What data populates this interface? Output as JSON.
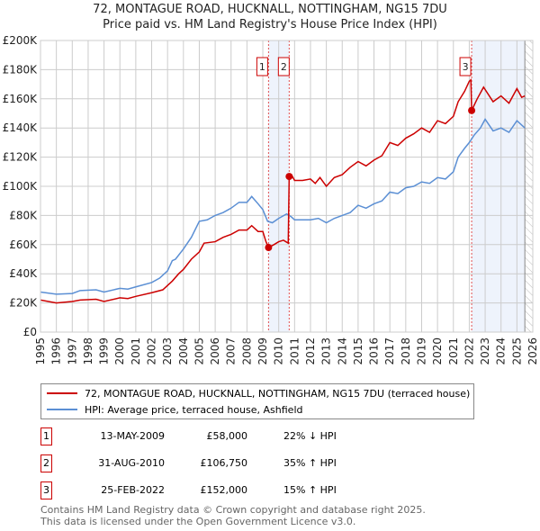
{
  "title": "72, MONTAGUE ROAD, HUCKNALL, NOTTINGHAM, NG15 7DU",
  "subtitle": "Price paid vs. HM Land Registry's House Price Index (HPI)",
  "chart_data": {
    "type": "line",
    "xlim": [
      1995,
      2026
    ],
    "ylim": [
      0,
      200000
    ],
    "xticks": [
      1995,
      1996,
      1997,
      1998,
      1999,
      2000,
      2001,
      2002,
      2003,
      2004,
      2005,
      2006,
      2007,
      2008,
      2009,
      2010,
      2011,
      2012,
      2013,
      2014,
      2015,
      2016,
      2017,
      2018,
      2019,
      2020,
      2021,
      2022,
      2023,
      2024,
      2025,
      2026
    ],
    "yticks": [
      {
        "v": 0,
        "label": "£0"
      },
      {
        "v": 20000,
        "label": "£20K"
      },
      {
        "v": 40000,
        "label": "£40K"
      },
      {
        "v": 60000,
        "label": "£60K"
      },
      {
        "v": 80000,
        "label": "£80K"
      },
      {
        "v": 100000,
        "label": "£100K"
      },
      {
        "v": 120000,
        "label": "£120K"
      },
      {
        "v": 140000,
        "label": "£140K"
      },
      {
        "v": 160000,
        "label": "£160K"
      },
      {
        "v": 180000,
        "label": "£180K"
      },
      {
        "v": 200000,
        "label": "£200K"
      }
    ],
    "series": [
      {
        "name": "72, MONTAGUE ROAD, HUCKNALL, NOTTINGHAM, NG15 7DU (terraced house)",
        "color": "#cc0000",
        "x": [
          1995,
          1996,
          1997,
          1997.5,
          1998.5,
          1999,
          2000,
          2000.5,
          2001,
          2002,
          2002.7,
          2003.3,
          2003.7,
          2004,
          2004.5,
          2005,
          2005.3,
          2006,
          2006.5,
          2007,
          2007.5,
          2008,
          2008.3,
          2008.7,
          2009,
          2009.2,
          2009.36,
          2009.7,
          2010,
          2010.3,
          2010.6,
          2010.66,
          2010.8,
          2011,
          2011.5,
          2012,
          2012.3,
          2012.6,
          2013,
          2013.5,
          2014,
          2014.5,
          2015,
          2015.5,
          2016,
          2016.5,
          2017,
          2017.5,
          2018,
          2018.5,
          2019,
          2019.5,
          2020,
          2020.5,
          2021,
          2021.3,
          2021.7,
          2022.0,
          2022.1,
          2022.15,
          2022.5,
          2022.9,
          2023.5,
          2024,
          2024.5,
          2025,
          2025.3,
          2025.5
        ],
        "y": [
          22000,
          20000,
          21000,
          22000,
          22500,
          21000,
          23500,
          23000,
          24500,
          27000,
          29000,
          35000,
          40000,
          43000,
          50000,
          55000,
          61000,
          62000,
          65000,
          67000,
          70000,
          70000,
          73000,
          69000,
          69000,
          62000,
          58000,
          60000,
          62000,
          63000,
          61000,
          106750,
          108000,
          104000,
          104000,
          105000,
          102000,
          106000,
          100000,
          106000,
          108000,
          113000,
          117000,
          114000,
          118000,
          121000,
          130000,
          128000,
          133000,
          136000,
          140000,
          137000,
          145000,
          143000,
          148000,
          158000,
          165000,
          172000,
          173000,
          152000,
          160000,
          168000,
          158000,
          162000,
          157000,
          167000,
          161000,
          162000
        ]
      },
      {
        "name": "HPI: Average price, terraced house, Ashfield",
        "color": "#5b8fd4",
        "x": [
          1995,
          1996,
          1997,
          1997.5,
          1998.5,
          1999,
          2000,
          2000.5,
          2001,
          2002,
          2002.5,
          2003,
          2003.3,
          2003.5,
          2004,
          2004.5,
          2005,
          2005.5,
          2006,
          2006.5,
          2007,
          2007.5,
          2008,
          2008.3,
          2008.7,
          2009,
          2009.3,
          2009.6,
          2010,
          2010.5,
          2010.8,
          2011,
          2012,
          2012.5,
          2013,
          2013.5,
          2014,
          2014.5,
          2015,
          2015.5,
          2016,
          2016.5,
          2017,
          2017.5,
          2018,
          2018.5,
          2019,
          2019.5,
          2020,
          2020.5,
          2021,
          2021.3,
          2021.7,
          2022,
          2022.3,
          2022.7,
          2023,
          2023.5,
          2024,
          2024.5,
          2025,
          2025.5
        ],
        "y": [
          27500,
          26000,
          26500,
          28500,
          29000,
          27500,
          30000,
          29500,
          31000,
          34000,
          37000,
          42000,
          49000,
          50000,
          57000,
          65000,
          76000,
          77000,
          80000,
          82000,
          85000,
          89000,
          89000,
          93000,
          88000,
          84000,
          76000,
          75000,
          78000,
          81000,
          79000,
          77000,
          77000,
          78000,
          75000,
          78000,
          80000,
          82000,
          87000,
          85000,
          88000,
          90000,
          96000,
          95000,
          99000,
          100000,
          103000,
          102000,
          106000,
          105000,
          110000,
          120000,
          126000,
          130000,
          135000,
          140000,
          146000,
          138000,
          140000,
          137000,
          145000,
          140000
        ]
      }
    ],
    "sales": [
      {
        "n": "1",
        "x": 2009.36,
        "y": 58000
      },
      {
        "n": "2",
        "x": 2010.66,
        "y": 106750
      },
      {
        "n": "3",
        "x": 2022.15,
        "y": 152000
      }
    ],
    "shaded": [
      [
        2009.36,
        2010.66
      ],
      [
        2022.15,
        2025.5
      ]
    ],
    "forecast_from": 2025.5
  },
  "legend": [
    "72, MONTAGUE ROAD, HUCKNALL, NOTTINGHAM, NG15 7DU (terraced house)",
    "HPI: Average price, terraced house, Ashfield"
  ],
  "transactions": [
    {
      "n": "1",
      "date": "13-MAY-2009",
      "price": "£58,000",
      "hpi": "22% ↓ HPI"
    },
    {
      "n": "2",
      "date": "31-AUG-2010",
      "price": "£106,750",
      "hpi": "35% ↑ HPI"
    },
    {
      "n": "3",
      "date": "25-FEB-2022",
      "price": "£152,000",
      "hpi": "15% ↑ HPI"
    }
  ],
  "footer": [
    "Contains HM Land Registry data © Crown copyright and database right 2025.",
    "This data is licensed under the Open Government Licence v3.0."
  ]
}
